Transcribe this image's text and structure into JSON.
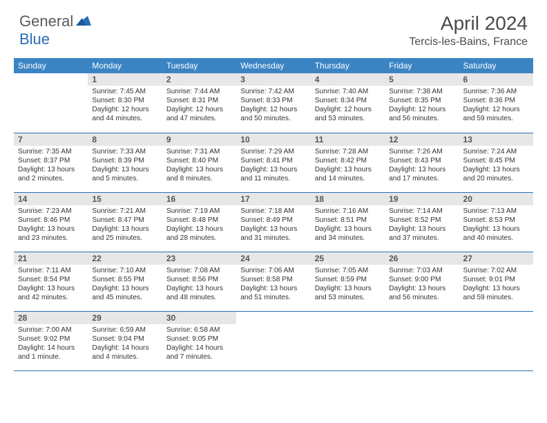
{
  "logo": {
    "text1": "General",
    "text2": "Blue"
  },
  "title": "April 2024",
  "location": "Tercis-les-Bains, France",
  "colors": {
    "header_bg": "#3b84c4",
    "row_border": "#2a6db5",
    "daynum_bg": "#e7e7e7",
    "text": "#333333",
    "title_text": "#4a4a4a",
    "logo_gray": "#5a5a5a",
    "logo_blue": "#2a6db5"
  },
  "daysOfWeek": [
    "Sunday",
    "Monday",
    "Tuesday",
    "Wednesday",
    "Thursday",
    "Friday",
    "Saturday"
  ],
  "weeks": [
    [
      null,
      {
        "n": "1",
        "sr": "7:45 AM",
        "ss": "8:30 PM",
        "dl": "12 hours and 44 minutes."
      },
      {
        "n": "2",
        "sr": "7:44 AM",
        "ss": "8:31 PM",
        "dl": "12 hours and 47 minutes."
      },
      {
        "n": "3",
        "sr": "7:42 AM",
        "ss": "8:33 PM",
        "dl": "12 hours and 50 minutes."
      },
      {
        "n": "4",
        "sr": "7:40 AM",
        "ss": "8:34 PM",
        "dl": "12 hours and 53 minutes."
      },
      {
        "n": "5",
        "sr": "7:38 AM",
        "ss": "8:35 PM",
        "dl": "12 hours and 56 minutes."
      },
      {
        "n": "6",
        "sr": "7:36 AM",
        "ss": "8:36 PM",
        "dl": "12 hours and 59 minutes."
      }
    ],
    [
      {
        "n": "7",
        "sr": "7:35 AM",
        "ss": "8:37 PM",
        "dl": "13 hours and 2 minutes."
      },
      {
        "n": "8",
        "sr": "7:33 AM",
        "ss": "8:39 PM",
        "dl": "13 hours and 5 minutes."
      },
      {
        "n": "9",
        "sr": "7:31 AM",
        "ss": "8:40 PM",
        "dl": "13 hours and 8 minutes."
      },
      {
        "n": "10",
        "sr": "7:29 AM",
        "ss": "8:41 PM",
        "dl": "13 hours and 11 minutes."
      },
      {
        "n": "11",
        "sr": "7:28 AM",
        "ss": "8:42 PM",
        "dl": "13 hours and 14 minutes."
      },
      {
        "n": "12",
        "sr": "7:26 AM",
        "ss": "8:43 PM",
        "dl": "13 hours and 17 minutes."
      },
      {
        "n": "13",
        "sr": "7:24 AM",
        "ss": "8:45 PM",
        "dl": "13 hours and 20 minutes."
      }
    ],
    [
      {
        "n": "14",
        "sr": "7:23 AM",
        "ss": "8:46 PM",
        "dl": "13 hours and 23 minutes."
      },
      {
        "n": "15",
        "sr": "7:21 AM",
        "ss": "8:47 PM",
        "dl": "13 hours and 25 minutes."
      },
      {
        "n": "16",
        "sr": "7:19 AM",
        "ss": "8:48 PM",
        "dl": "13 hours and 28 minutes."
      },
      {
        "n": "17",
        "sr": "7:18 AM",
        "ss": "8:49 PM",
        "dl": "13 hours and 31 minutes."
      },
      {
        "n": "18",
        "sr": "7:16 AM",
        "ss": "8:51 PM",
        "dl": "13 hours and 34 minutes."
      },
      {
        "n": "19",
        "sr": "7:14 AM",
        "ss": "8:52 PM",
        "dl": "13 hours and 37 minutes."
      },
      {
        "n": "20",
        "sr": "7:13 AM",
        "ss": "8:53 PM",
        "dl": "13 hours and 40 minutes."
      }
    ],
    [
      {
        "n": "21",
        "sr": "7:11 AM",
        "ss": "8:54 PM",
        "dl": "13 hours and 42 minutes."
      },
      {
        "n": "22",
        "sr": "7:10 AM",
        "ss": "8:55 PM",
        "dl": "13 hours and 45 minutes."
      },
      {
        "n": "23",
        "sr": "7:08 AM",
        "ss": "8:56 PM",
        "dl": "13 hours and 48 minutes."
      },
      {
        "n": "24",
        "sr": "7:06 AM",
        "ss": "8:58 PM",
        "dl": "13 hours and 51 minutes."
      },
      {
        "n": "25",
        "sr": "7:05 AM",
        "ss": "8:59 PM",
        "dl": "13 hours and 53 minutes."
      },
      {
        "n": "26",
        "sr": "7:03 AM",
        "ss": "9:00 PM",
        "dl": "13 hours and 56 minutes."
      },
      {
        "n": "27",
        "sr": "7:02 AM",
        "ss": "9:01 PM",
        "dl": "13 hours and 59 minutes."
      }
    ],
    [
      {
        "n": "28",
        "sr": "7:00 AM",
        "ss": "9:02 PM",
        "dl": "14 hours and 1 minute."
      },
      {
        "n": "29",
        "sr": "6:59 AM",
        "ss": "9:04 PM",
        "dl": "14 hours and 4 minutes."
      },
      {
        "n": "30",
        "sr": "6:58 AM",
        "ss": "9:05 PM",
        "dl": "14 hours and 7 minutes."
      },
      null,
      null,
      null,
      null
    ]
  ],
  "labels": {
    "sunrise": "Sunrise: ",
    "sunset": "Sunset: ",
    "daylight": "Daylight: "
  }
}
